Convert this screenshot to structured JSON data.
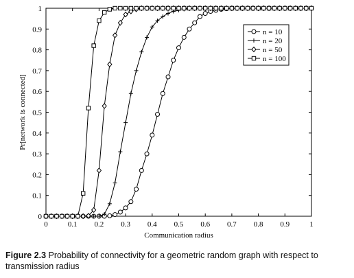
{
  "caption": {
    "label": "Figure 2.3",
    "text": "Probability of connectivity for a geometric random graph with respect to transmission radius"
  },
  "chart_data": {
    "type": "line",
    "title": "",
    "xlabel": "Communication radius",
    "ylabel": "Pr[network is connected]",
    "xlim": [
      0,
      1
    ],
    "ylim": [
      0,
      1
    ],
    "xticks": [
      "0",
      "0.1",
      "0.2",
      "0.3",
      "0.4",
      "0.5",
      "0.6",
      "0.7",
      "0.8",
      "0.9",
      "1"
    ],
    "yticks": [
      "0",
      "0.1",
      "0.2",
      "0.3",
      "0.4",
      "0.5",
      "0.6",
      "0.7",
      "0.8",
      "0.9",
      "1"
    ],
    "grid": false,
    "legend_position": "top-right",
    "x": [
      0,
      0.02,
      0.04,
      0.06,
      0.08,
      0.1,
      0.12,
      0.14,
      0.16,
      0.18,
      0.2,
      0.22,
      0.24,
      0.26,
      0.28,
      0.3,
      0.32,
      0.34,
      0.36,
      0.38,
      0.4,
      0.42,
      0.44,
      0.46,
      0.48,
      0.5,
      0.52,
      0.54,
      0.56,
      0.58,
      0.6,
      0.62,
      0.64,
      0.66,
      0.68,
      0.7,
      0.72,
      0.74,
      0.76,
      0.78,
      0.8,
      0.82,
      0.84,
      0.86,
      0.88,
      0.9,
      0.92,
      0.94,
      0.96,
      0.98,
      1.0
    ],
    "series": [
      {
        "name": "n = 10",
        "marker": "circle",
        "values": [
          0,
          0,
          0,
          0,
          0,
          0,
          0,
          0,
          0,
          0,
          0,
          0,
          0.002,
          0.008,
          0.02,
          0.04,
          0.07,
          0.13,
          0.22,
          0.3,
          0.39,
          0.49,
          0.59,
          0.67,
          0.75,
          0.81,
          0.86,
          0.9,
          0.93,
          0.96,
          0.975,
          0.985,
          0.99,
          0.995,
          0.998,
          1,
          1,
          1,
          1,
          1,
          1,
          1,
          1,
          1,
          1,
          1,
          1,
          1,
          1,
          1,
          1
        ]
      },
      {
        "name": "n = 20",
        "marker": "plus",
        "values": [
          0,
          0,
          0,
          0,
          0,
          0,
          0,
          0,
          0,
          0,
          0,
          0.01,
          0.06,
          0.16,
          0.31,
          0.45,
          0.59,
          0.7,
          0.79,
          0.86,
          0.91,
          0.94,
          0.96,
          0.975,
          0.985,
          0.99,
          0.995,
          0.998,
          1,
          1,
          1,
          1,
          1,
          1,
          1,
          1,
          1,
          1,
          1,
          1,
          1,
          1,
          1,
          1,
          1,
          1,
          1,
          1,
          1,
          1,
          1
        ]
      },
      {
        "name": "n = 50",
        "marker": "diamond",
        "values": [
          0,
          0,
          0,
          0,
          0,
          0,
          0,
          0,
          0.002,
          0.03,
          0.22,
          0.53,
          0.73,
          0.87,
          0.93,
          0.97,
          0.985,
          0.995,
          1,
          1,
          1,
          1,
          1,
          1,
          1,
          1,
          1,
          1,
          1,
          1,
          1,
          1,
          1,
          1,
          1,
          1,
          1,
          1,
          1,
          1,
          1,
          1,
          1,
          1,
          1,
          1,
          1,
          1,
          1,
          1,
          1
        ]
      },
      {
        "name": "n = 100",
        "marker": "square",
        "values": [
          0,
          0,
          0,
          0,
          0,
          0,
          0,
          0.11,
          0.52,
          0.82,
          0.94,
          0.98,
          0.995,
          1,
          1,
          1,
          1,
          1,
          1,
          1,
          1,
          1,
          1,
          1,
          1,
          1,
          1,
          1,
          1,
          1,
          1,
          1,
          1,
          1,
          1,
          1,
          1,
          1,
          1,
          1,
          1,
          1,
          1,
          1,
          1,
          1,
          1,
          1,
          1,
          1,
          1
        ]
      }
    ]
  }
}
